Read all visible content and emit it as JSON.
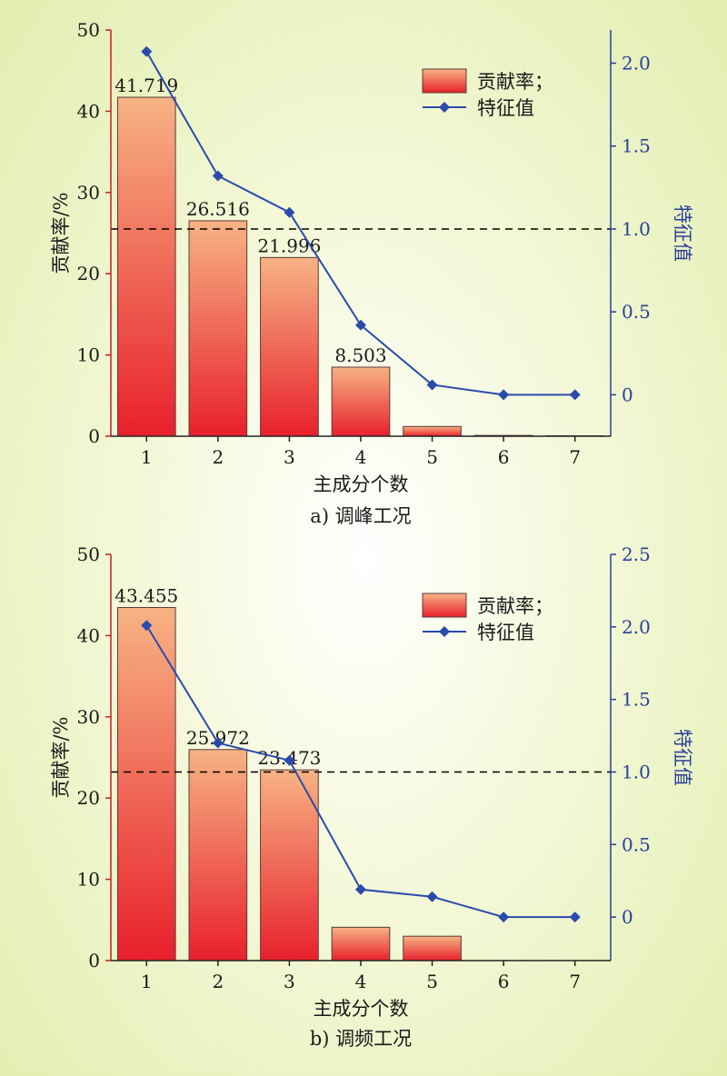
{
  "colors": {
    "bar_top": "#f7b384",
    "bar_bottom": "#e8202c",
    "bar_stroke": "#5a3a36",
    "line": "#2a4bab",
    "right_axis": "#2a3f9a",
    "left_axis": "#c0202a",
    "text": "#1a1a1a"
  },
  "chart_data": [
    {
      "type": "bar",
      "caption": "a) 调峰工况",
      "xlabel": "主成分个数",
      "ylabel": "贡献率/%",
      "y2label": "特征值",
      "categories": [
        "1",
        "2",
        "3",
        "4",
        "5",
        "6",
        "7"
      ],
      "ylim": [
        0,
        50
      ],
      "yticks": [
        "0",
        "10",
        "20",
        "30",
        "40",
        "50"
      ],
      "y2lim": [
        -0.25,
        2.2
      ],
      "y2ticks": [
        "0",
        "0.5",
        "1.0",
        "1.5",
        "2.0"
      ],
      "y2tick_values": [
        0,
        0.5,
        1.0,
        1.5,
        2.0
      ],
      "reference_line_y2": 1.0,
      "legend_position": "top-right",
      "series": [
        {
          "name": "贡献率；",
          "kind": "bar",
          "values": [
            41.719,
            26.516,
            21.996,
            8.503,
            1.2,
            0.1,
            0.05
          ],
          "labels": [
            "41.719",
            "26.516",
            "21.996",
            "8.503",
            "",
            "",
            ""
          ]
        },
        {
          "name": "特征值",
          "kind": "line",
          "axis": "right",
          "values": [
            2.07,
            1.32,
            1.1,
            0.42,
            0.06,
            0.0,
            0.0
          ]
        }
      ]
    },
    {
      "type": "bar",
      "caption": "b) 调频工况",
      "xlabel": "主成分个数",
      "ylabel": "贡献率/%",
      "y2label": "特征值",
      "categories": [
        "1",
        "2",
        "3",
        "4",
        "5",
        "6",
        "7"
      ],
      "ylim": [
        0,
        50
      ],
      "yticks": [
        "0",
        "10",
        "20",
        "30",
        "40",
        "50"
      ],
      "y2lim": [
        -0.3,
        2.5
      ],
      "y2ticks": [
        "0",
        "0.5",
        "1.0",
        "1.5",
        "2.0",
        "2.5"
      ],
      "y2tick_values": [
        0,
        0.5,
        1.0,
        1.5,
        2.0,
        2.5
      ],
      "reference_line_y2": 1.0,
      "legend_position": "top-right",
      "series": [
        {
          "name": "贡献率；",
          "kind": "bar",
          "values": [
            43.455,
            25.972,
            23.473,
            4.1,
            3.0,
            0,
            0
          ],
          "labels": [
            "43.455",
            "25.972",
            "23.473",
            "",
            "",
            "",
            ""
          ]
        },
        {
          "name": "特征值",
          "kind": "line",
          "axis": "right",
          "values": [
            2.01,
            1.2,
            1.08,
            0.19,
            0.14,
            0.0,
            0.0
          ]
        }
      ]
    }
  ]
}
